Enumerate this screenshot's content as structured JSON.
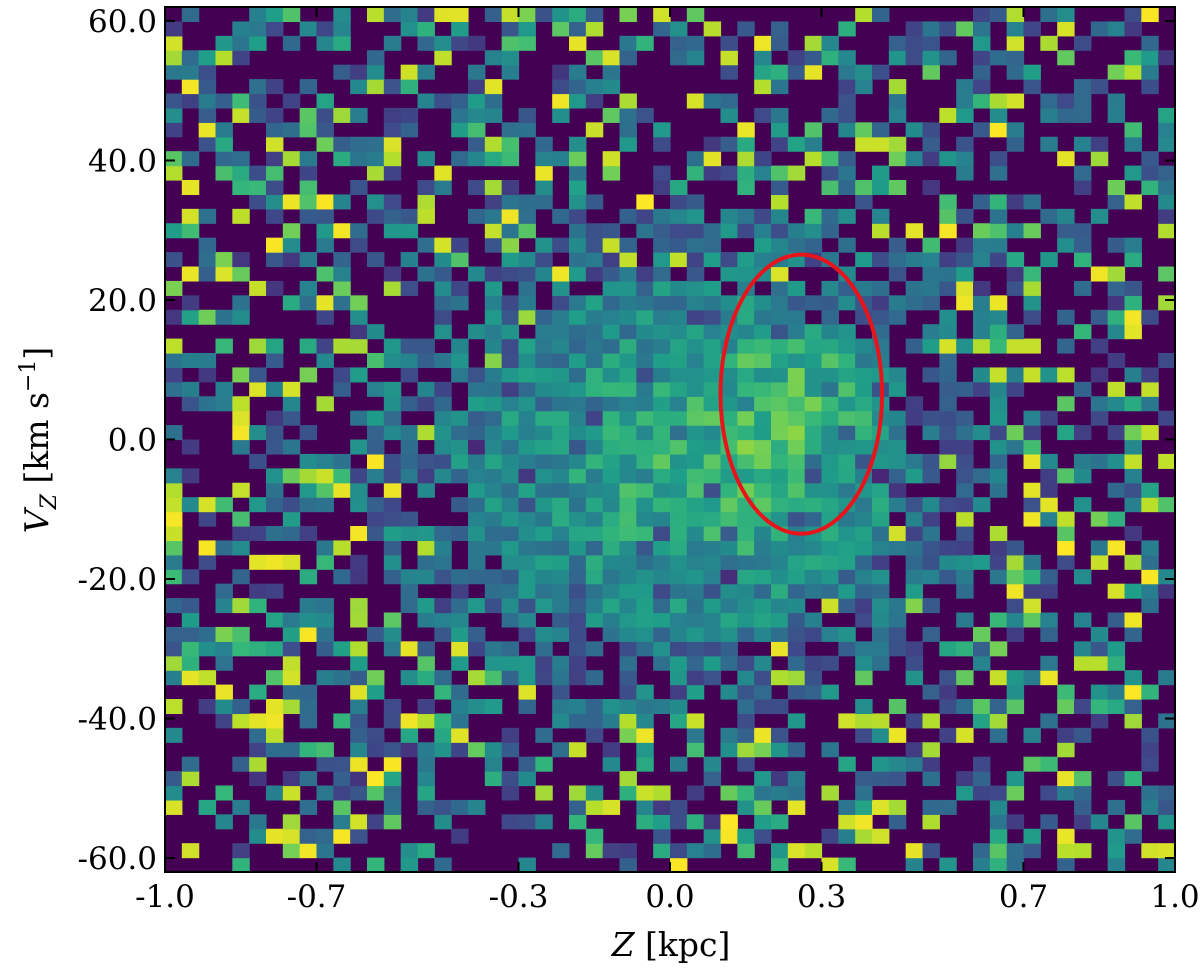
{
  "chart_data": {
    "type": "heatmap",
    "title": "",
    "xlabel": {
      "var": "Z",
      "unit": " [kpc]"
    },
    "ylabel": {
      "var": "V",
      "sub": "Z",
      "unit": " [km s",
      "exp": "−1",
      "close": "]"
    },
    "xlim": [
      -1.0,
      1.0
    ],
    "ylim": [
      -62.0,
      62.0
    ],
    "x_ticks": [
      -1.0,
      -0.7,
      -0.3,
      0.0,
      0.3,
      0.7,
      1.0
    ],
    "x_tick_labels": [
      "-1.0",
      "-0.7",
      "-0.3",
      "0.0",
      "0.3",
      "0.7",
      "1.0"
    ],
    "y_ticks": [
      -60,
      -40,
      -20,
      0,
      20,
      40,
      60
    ],
    "y_tick_labels": [
      "-60.0",
      "-40.0",
      "-20.0",
      "0.0",
      "20.0",
      "40.0",
      "60.0"
    ],
    "grid": false,
    "colormap": "viridis",
    "colors": {
      "low": "#440154",
      "mid": "#21918c",
      "high": "#fde725",
      "ellipse": "#e8141b"
    },
    "bins": {
      "nx": 60,
      "ny": 60,
      "x_range": [
        -1.0,
        1.0
      ],
      "y_range": [
        -62.0,
        62.0
      ]
    },
    "pattern": {
      "core_center": [
        0.02,
        -3.0
      ],
      "core_sigma": [
        0.42,
        24.0
      ],
      "secondary_peak": [
        0.25,
        6.0
      ],
      "outer_noise": "sparse bins, dark background with scattered bright cells"
    },
    "annotations": [
      {
        "type": "ellipse",
        "center": [
          0.26,
          6.5
        ],
        "width": 0.32,
        "height": 40.0,
        "color": "#e8141b"
      }
    ]
  }
}
